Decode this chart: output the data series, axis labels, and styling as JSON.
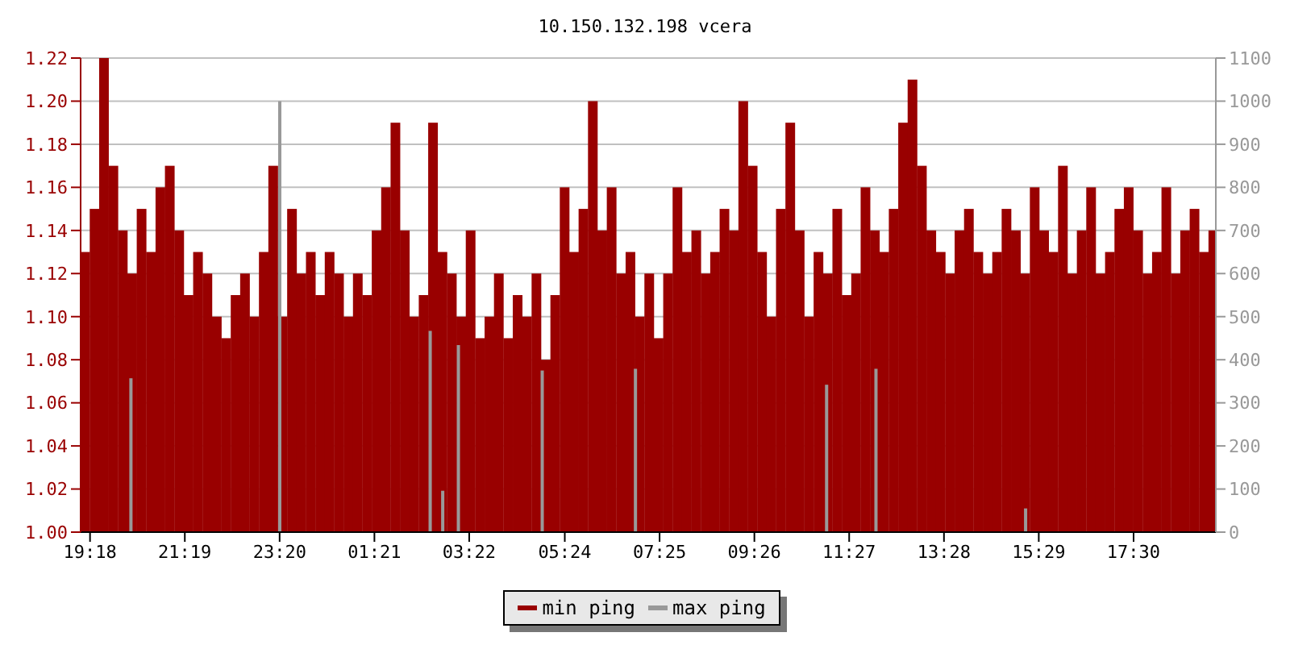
{
  "chart_data": {
    "type": "bar",
    "title": "10.150.132.198 vcera",
    "xlim": [
      "--01-01T19:06",
      "--01-02T19:15"
    ],
    "xticks": [
      {
        "value": "--01-01T19:18",
        "label": "19:18"
      },
      {
        "value": "--01-01T21:19",
        "label": "21:19"
      },
      {
        "value": "--01-01T23:20",
        "label": "23:20"
      },
      {
        "value": "--01-02T01:21",
        "label": "01:21"
      },
      {
        "value": "--01-02T03:22",
        "label": "03:22"
      },
      {
        "value": "--01-02T05:24",
        "label": "05:24"
      },
      {
        "value": "--01-02T07:25",
        "label": "07:25"
      },
      {
        "value": "--01-02T09:26",
        "label": "09:26"
      },
      {
        "value": "--01-02T11:27",
        "label": "11:27"
      },
      {
        "value": "--01-02T13:28",
        "label": "13:28"
      },
      {
        "value": "--01-02T15:29",
        "label": "15:29"
      },
      {
        "value": "--01-02T17:30",
        "label": "17:30"
      }
    ],
    "ylim": [
      1.0,
      1.22
    ],
    "yticks": [
      {
        "value": 1.0,
        "label": "1.00"
      },
      {
        "value": 1.02,
        "label": "1.02"
      },
      {
        "value": 1.04,
        "label": "1.04"
      },
      {
        "value": 1.06,
        "label": "1.06"
      },
      {
        "value": 1.08,
        "label": "1.08"
      },
      {
        "value": 1.1,
        "label": "1.10"
      },
      {
        "value": 1.12,
        "label": "1.12"
      },
      {
        "value": 1.14,
        "label": "1.14"
      },
      {
        "value": 1.16,
        "label": "1.16"
      },
      {
        "value": 1.18,
        "label": "1.18"
      },
      {
        "value": 1.2,
        "label": "1.20"
      },
      {
        "value": 1.22,
        "label": "1.22"
      }
    ],
    "y2lim": [
      0,
      1100
    ],
    "y2ticks": [
      0,
      100,
      200,
      300,
      400,
      500,
      600,
      700,
      800,
      900,
      1000,
      1100
    ],
    "grid": "y",
    "legend": "bottom",
    "series": [
      {
        "name": "min ping",
        "color": "#990000",
        "x": [
          "--01-01T19:12",
          "--01-01T19:24",
          "--01-01T19:36",
          "--01-01T19:48",
          "--01-01T20:00",
          "--01-01T20:12",
          "--01-01T20:24",
          "--01-01T20:36",
          "--01-01T20:48",
          "--01-01T21:00",
          "--01-01T21:12",
          "--01-01T21:24",
          "--01-01T21:36",
          "--01-01T21:48",
          "--01-01T22:00",
          "--01-01T22:12",
          "--01-01T22:24",
          "--01-01T22:36",
          "--01-01T22:48",
          "--01-01T23:00",
          "--01-01T23:12",
          "--01-01T23:24",
          "--01-01T23:36",
          "--01-01T23:48",
          "--01-02T00:00",
          "--01-02T00:12",
          "--01-02T00:24",
          "--01-02T00:36",
          "--01-02T00:48",
          "--01-02T01:00",
          "--01-02T01:12",
          "--01-02T01:24",
          "--01-02T01:36",
          "--01-02T01:48",
          "--01-02T02:00",
          "--01-02T02:12",
          "--01-02T02:24",
          "--01-02T02:36",
          "--01-02T02:48",
          "--01-02T03:00",
          "--01-02T03:12",
          "--01-02T03:24",
          "--01-02T03:36",
          "--01-02T03:48",
          "--01-02T04:00",
          "--01-02T04:12",
          "--01-02T04:24",
          "--01-02T04:36",
          "--01-02T04:48",
          "--01-02T05:00",
          "--01-02T05:12",
          "--01-02T05:24",
          "--01-02T05:36",
          "--01-02T05:48",
          "--01-02T06:00",
          "--01-02T06:12",
          "--01-02T06:24",
          "--01-02T06:36",
          "--01-02T06:48",
          "--01-02T07:00",
          "--01-02T07:12",
          "--01-02T07:24",
          "--01-02T07:36",
          "--01-02T07:48",
          "--01-02T08:00",
          "--01-02T08:12",
          "--01-02T08:24",
          "--01-02T08:36",
          "--01-02T08:48",
          "--01-02T09:00",
          "--01-02T09:12",
          "--01-02T09:24",
          "--01-02T09:36",
          "--01-02T09:48",
          "--01-02T10:00",
          "--01-02T10:12",
          "--01-02T10:24",
          "--01-02T10:36",
          "--01-02T10:48",
          "--01-02T11:00",
          "--01-02T11:12",
          "--01-02T11:24",
          "--01-02T11:36",
          "--01-02T11:48",
          "--01-02T12:00",
          "--01-02T12:12",
          "--01-02T12:24",
          "--01-02T12:36",
          "--01-02T12:48",
          "--01-02T13:00",
          "--01-02T13:12",
          "--01-02T13:24",
          "--01-02T13:36",
          "--01-02T13:48",
          "--01-02T14:00",
          "--01-02T14:12",
          "--01-02T14:24",
          "--01-02T14:36",
          "--01-02T14:48",
          "--01-02T15:00",
          "--01-02T15:12",
          "--01-02T15:24",
          "--01-02T15:36",
          "--01-02T15:48",
          "--01-02T16:00",
          "--01-02T16:12",
          "--01-02T16:24",
          "--01-02T16:36",
          "--01-02T16:48",
          "--01-02T17:00",
          "--01-02T17:12",
          "--01-02T17:24",
          "--01-02T17:36",
          "--01-02T17:48",
          "--01-02T18:00",
          "--01-02T18:12",
          "--01-02T18:24",
          "--01-02T18:36",
          "--01-02T18:48",
          "--01-02T19:00",
          "--01-02T19:12"
        ],
        "values": [
          1.13,
          1.15,
          1.22,
          1.17,
          1.14,
          1.12,
          1.15,
          1.13,
          1.16,
          1.17,
          1.14,
          1.11,
          1.13,
          1.12,
          1.1,
          1.09,
          1.11,
          1.12,
          1.1,
          1.13,
          1.17,
          1.1,
          1.15,
          1.12,
          1.13,
          1.11,
          1.13,
          1.12,
          1.1,
          1.12,
          1.11,
          1.14,
          1.16,
          1.19,
          1.14,
          1.1,
          1.11,
          1.19,
          1.13,
          1.12,
          1.1,
          1.14,
          1.09,
          1.1,
          1.12,
          1.09,
          1.11,
          1.1,
          1.12,
          1.08,
          1.11,
          1.16,
          1.13,
          1.15,
          1.2,
          1.14,
          1.16,
          1.12,
          1.13,
          1.1,
          1.12,
          1.09,
          1.12,
          1.16,
          1.13,
          1.14,
          1.12,
          1.13,
          1.15,
          1.14,
          1.2,
          1.17,
          1.13,
          1.1,
          1.15,
          1.19,
          1.14,
          1.1,
          1.13,
          1.12,
          1.15,
          1.11,
          1.12,
          1.16,
          1.14,
          1.13,
          1.15,
          1.19,
          1.21,
          1.17,
          1.14,
          1.13,
          1.12,
          1.14,
          1.15,
          1.13,
          1.12,
          1.13,
          1.15,
          1.14,
          1.12,
          1.16,
          1.14,
          1.13,
          1.17,
          1.12,
          1.14,
          1.16,
          1.12,
          1.13,
          1.15,
          1.16,
          1.14,
          1.12,
          1.13,
          1.16,
          1.12,
          1.14,
          1.15,
          1.13,
          1.14
        ]
      },
      {
        "name": "max ping",
        "color": "#999999",
        "axis": "y2",
        "x": [
          "--01-01T20:10",
          "--01-01T23:20",
          "--01-02T02:32",
          "--01-02T02:48",
          "--01-02T03:08",
          "--01-02T04:55",
          "--01-02T06:54",
          "--01-02T10:58",
          "--01-02T12:01",
          "--01-02T15:12"
        ],
        "values": [
          357,
          1000,
          467,
          96,
          434,
          375,
          379,
          342,
          379,
          55
        ]
      }
    ]
  }
}
